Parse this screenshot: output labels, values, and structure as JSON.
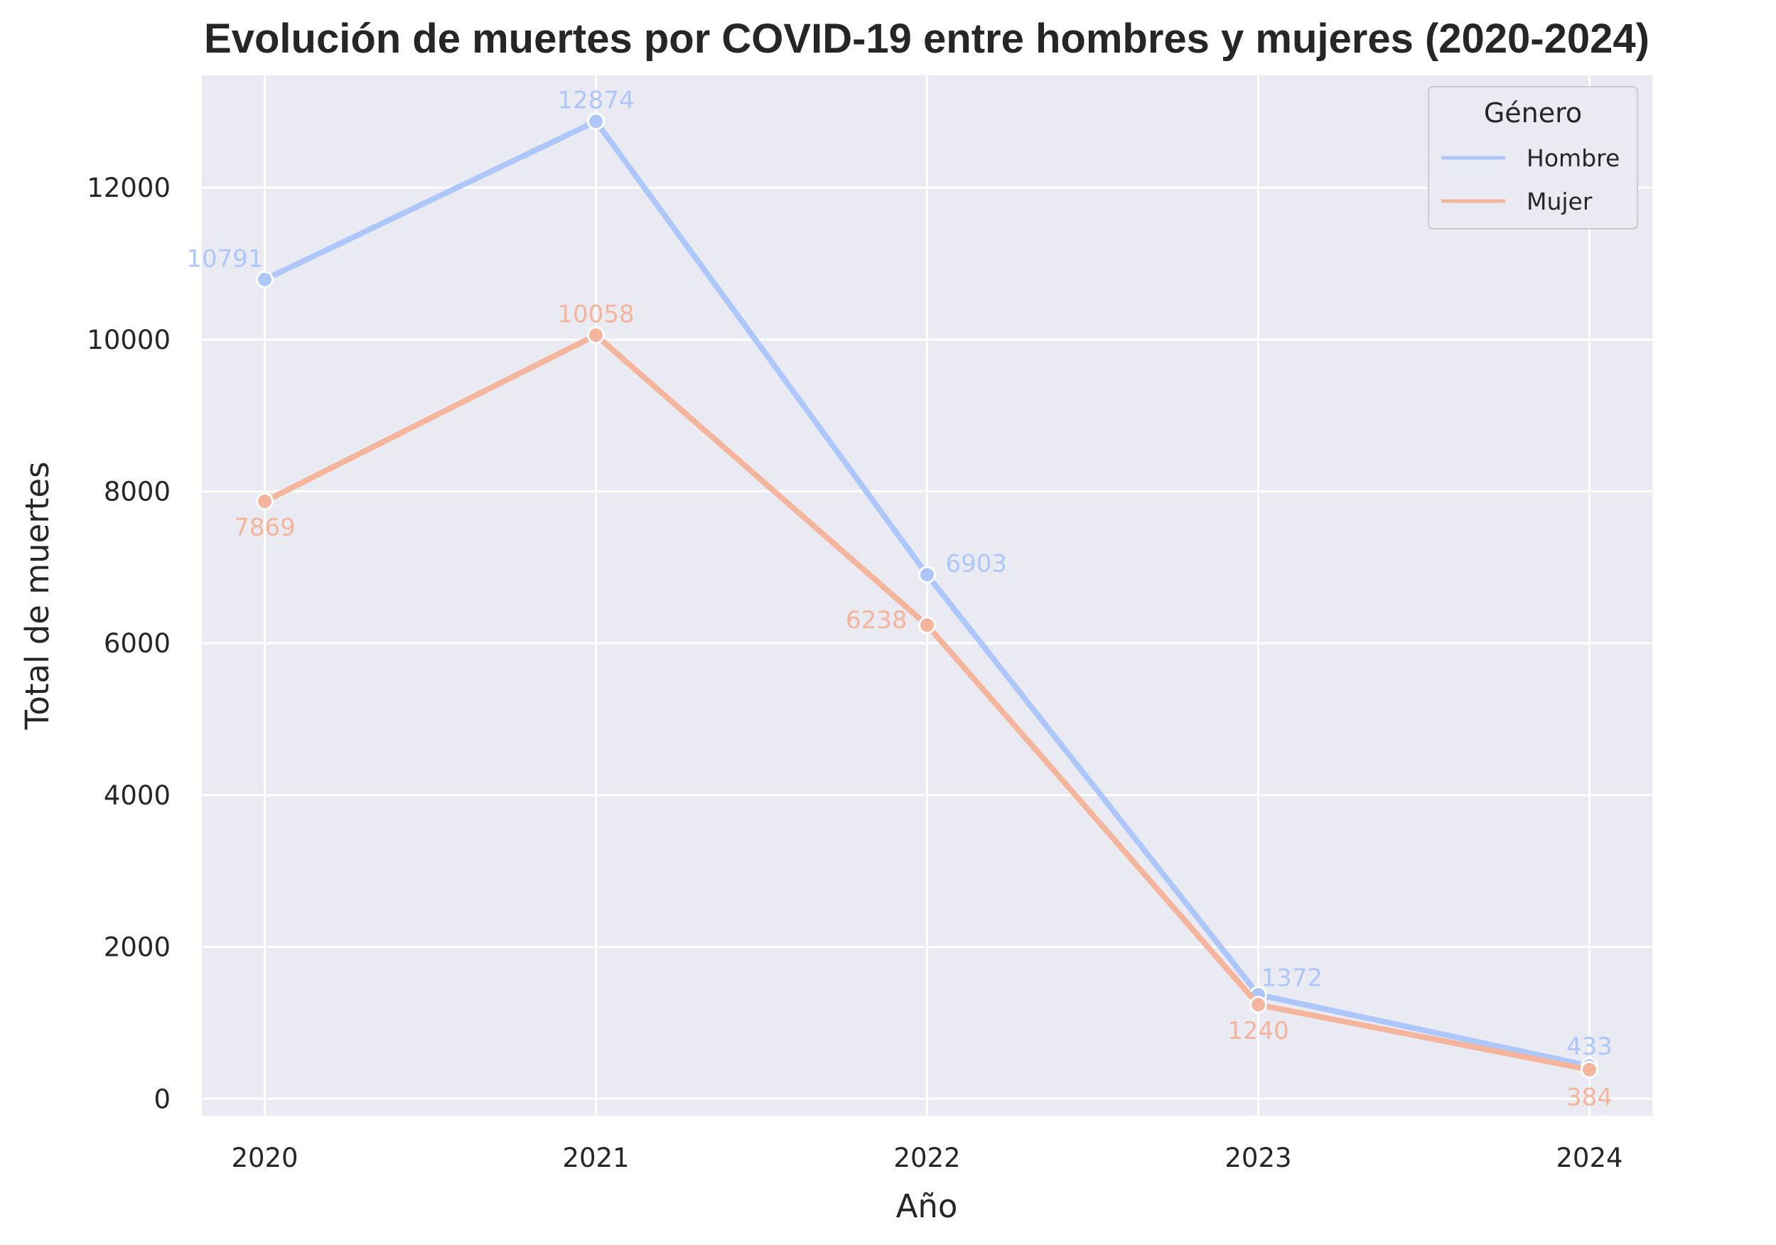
{
  "chart_data": {
    "type": "line",
    "title": "Evolución de muertes por COVID-19 entre hombres y mujeres (2020-2024)",
    "xlabel": "Año",
    "ylabel": "Total de muertes",
    "x": [
      2020,
      2021,
      2022,
      2023,
      2024
    ],
    "x_tick_labels": [
      "2020",
      "2021",
      "2022",
      "2023",
      "2024"
    ],
    "y_ticks": [
      0,
      2000,
      4000,
      6000,
      8000,
      10000,
      12000
    ],
    "y_tick_labels": [
      "0",
      "2000",
      "4000",
      "6000",
      "8000",
      "10000",
      "12000"
    ],
    "xlim": [
      2019.81,
      2024.19
    ],
    "ylim": [
      -222,
      13480
    ],
    "grid": true,
    "legend": {
      "title": "Género",
      "placement": "top-right"
    },
    "series": [
      {
        "name": "Hombre",
        "color": "#aec7fb",
        "values": [
          10791,
          12874,
          6903,
          1372,
          433
        ],
        "labels": [
          "10791",
          "12874",
          "6903",
          "1372",
          "433"
        ]
      },
      {
        "name": "Mujer",
        "color": "#f5b49c",
        "values": [
          7869,
          10058,
          6238,
          1240,
          384
        ],
        "labels": [
          "7869",
          "10058",
          "6238",
          "1240",
          "384"
        ]
      }
    ],
    "background_color": "#eaeaf2",
    "grid_color": "#ffffff"
  }
}
